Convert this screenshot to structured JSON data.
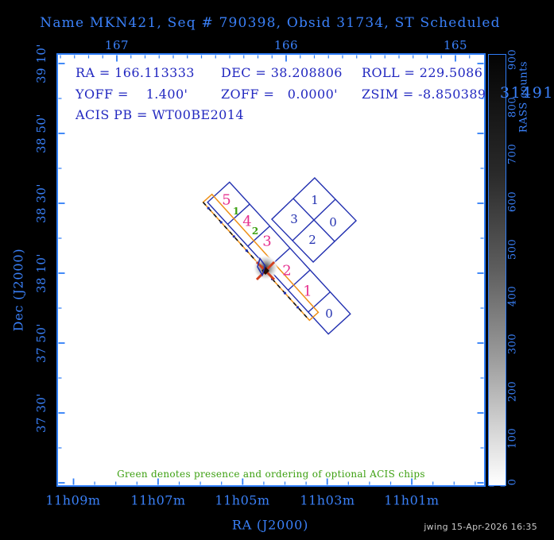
{
  "title": "Name MKN421, Seq # 790398, Obsid 31734, ST Scheduled",
  "info": {
    "ra": "RA = 166.113333",
    "dec": "DEC = 38.208806",
    "roll": "ROLL = 229.5086",
    "yoff": "YOFF =    1.400'",
    "zoff": "ZOFF =   0.0000'",
    "zsim": "ZSIM = -8.850389",
    "acis_pb": "ACIS PB = WT00BE2014"
  },
  "axes": {
    "top": {
      "labels": [
        "167",
        "166",
        "165"
      ]
    },
    "bottom": {
      "title": "RA (J2000)",
      "labels": [
        "11h09m",
        "11h07m",
        "11h05m",
        "11h03m",
        "11h01m"
      ]
    },
    "left": {
      "title": "Dec (J2000)",
      "labels": [
        "39 10'",
        "38 50'",
        "38 30'",
        "38 10'",
        "37 50'",
        "37 30'"
      ]
    }
  },
  "colorbar": {
    "title": "RASS counts",
    "tick_labels": [
      "900",
      "800",
      "700",
      "600",
      "500",
      "400",
      "300",
      "200",
      "100",
      "0"
    ],
    "overlap_text": "31491"
  },
  "chips": {
    "i_labels": [
      "1",
      "3",
      "0",
      "2"
    ],
    "s_labels": [
      "5",
      "4",
      "3",
      "2",
      "1",
      "0"
    ],
    "s_optional_green": [
      "1",
      "2"
    ]
  },
  "footer_note": "Green denotes presence and ordering of optional ACIS chips",
  "credit": "jwing 15-Apr-2026 16:35",
  "colors": {
    "axis_blue": "#3a80f8",
    "frame_blue": "#2e7df8",
    "info_blue": "#2228c0",
    "chip_navy": "#2230b0",
    "chip_magenta": "#e6308e",
    "optional_green": "#3da011",
    "window_orange": "#ee9018",
    "marker_red": "#d2401e",
    "background": "#000000",
    "plot_background": "#ffffff"
  },
  "chart_data": {
    "type": "scatter",
    "title": "Name MKN421, Seq # 790398, Obsid 31734, ST Scheduled",
    "xlabel": "RA (J2000)",
    "ylabel": "Dec (J2000)",
    "x_axis_top_ticks_deg": [
      167,
      166,
      165
    ],
    "x_axis_bottom_ticks": [
      "11h09m",
      "11h07m",
      "11h05m",
      "11h03m",
      "11h01m"
    ],
    "y_axis_ticks": [
      "39 10'",
      "38 50'",
      "38 30'",
      "38 10'",
      "37 50'",
      "37 30'"
    ],
    "x_range_deg": [
      167.35,
      164.83
    ],
    "y_range_deg": [
      37.15,
      39.21
    ],
    "grid": false,
    "colorbar": {
      "label": "RASS counts",
      "min": 0,
      "max": 900,
      "tick_step": 100,
      "scale": "white-to-black"
    },
    "points": [
      {
        "name": "target",
        "ra_deg": 166.113333,
        "dec_deg": 38.208806,
        "roll_deg": 229.5086,
        "marker": "red X over gray RASS source"
      }
    ],
    "overlays": [
      {
        "name": "ACIS-I array",
        "shape": "2x2 rotated squares",
        "chip_labels": [
          "1",
          "3",
          "0",
          "2"
        ],
        "color": "blue"
      },
      {
        "name": "ACIS-S array",
        "shape": "1x6 rotated strip",
        "chip_labels": [
          "5",
          "4",
          "3",
          "2",
          "1",
          "0"
        ],
        "label_colors": [
          "magenta",
          "magenta",
          "magenta",
          "magenta",
          "magenta",
          "blue"
        ]
      },
      {
        "name": "optional chip ordering",
        "labels": [
          "1",
          "2"
        ],
        "color": "green"
      },
      {
        "name": "window outline",
        "shape": "narrow rectangle along S-array",
        "color": "orange",
        "style": "solid with black dashes"
      }
    ]
  }
}
